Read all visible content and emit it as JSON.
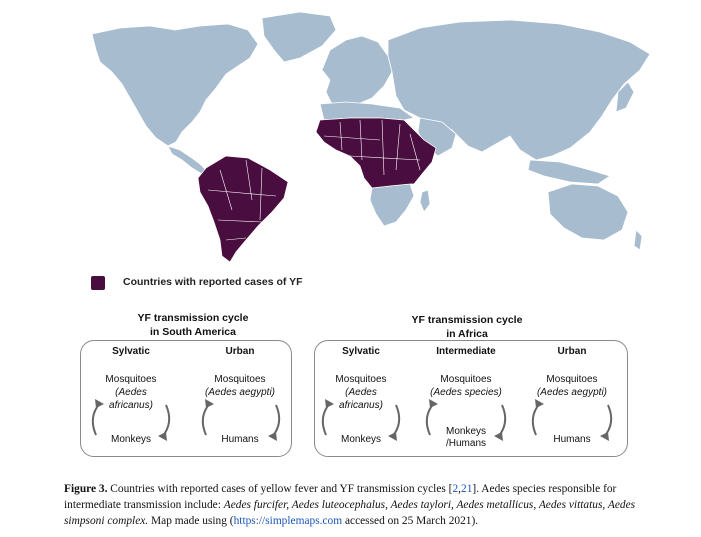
{
  "legend": {
    "label": "Countries with reported cases of YF",
    "color": "#4a0d3f"
  },
  "colors": {
    "land": "#a7bccf",
    "reported": "#4a0d3f",
    "border": "#ffffff"
  },
  "south_america": {
    "title_line1": "YF transmission cycle",
    "title_line2": "in South America",
    "columns": [
      {
        "head": "Sylvatic",
        "vector_line1": "Mosquitoes",
        "vector_line2": "(Aedes",
        "vector_line3": "africanus)",
        "host_line1": "Monkeys",
        "host_line2": ""
      },
      {
        "head": "Urban",
        "vector_line1": "Mosquitoes",
        "vector_line2": "(Aedes aegypti)",
        "vector_line3": "",
        "host_line1": "Humans",
        "host_line2": ""
      }
    ]
  },
  "africa": {
    "title_line1": "YF transmission cycle",
    "title_line2": "in Africa",
    "columns": [
      {
        "head": "Sylvatic",
        "vector_line1": "Mosquitoes",
        "vector_line2": "(Aedes",
        "vector_line3": "africanus)",
        "host_line1": "Monkeys",
        "host_line2": ""
      },
      {
        "head": "Intermediate",
        "vector_line1": "Mosquitoes",
        "vector_line2": "(Aedes species)",
        "vector_line3": "",
        "host_line1": "Monkeys",
        "host_line2": "/Humans"
      },
      {
        "head": "Urban",
        "vector_line1": "Mosquitoes",
        "vector_line2": "(Aedes aegypti)",
        "vector_line3": "",
        "host_line1": "Humans",
        "host_line2": ""
      }
    ]
  },
  "caption": {
    "label": "Figure 3.",
    "text1": " Countries with reported cases of yellow fever and YF transmission cycles [",
    "ref1": "2",
    "ref_sep": ",",
    "ref2": "21",
    "text2": "]. Aedes species responsible for intermediate transmission include: ",
    "species": "Aedes furcifer, Aedes luteocephalus, Aedes taylori, Aedes metallicus, Aedes vittatus, Aedes simpsoni complex.",
    "text3": " Map made using (",
    "url": "https://simplemaps.com",
    "text4": " accessed on 25 March 2021)."
  }
}
